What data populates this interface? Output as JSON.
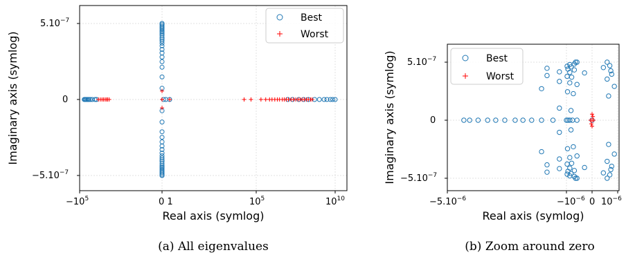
{
  "colors": {
    "best": "#1f77b4",
    "worst": "#ff0000",
    "grid": "#d9d9d9"
  },
  "chart_data": [
    {
      "type": "scatter",
      "caption": "(a) All eigenvalues",
      "xlabel": "Real axis (symlog)",
      "ylabel": "Imaginary axis (symlog)",
      "xscale": "symlog",
      "yscale": "symlog",
      "legend_position": "top-right",
      "grid": true,
      "x_ticks": [
        {
          "label": "−10",
          "exp": "5"
        },
        {
          "label": "0 1",
          "exp": ""
        },
        {
          "label": "10",
          "exp": "5"
        },
        {
          "label": "10",
          "exp": "10"
        }
      ],
      "y_ticks": [
        {
          "label": "5.10",
          "exp": "−7"
        },
        {
          "label": "0",
          "exp": ""
        },
        {
          "label": "−5.10",
          "exp": "−7"
        }
      ],
      "series": [
        {
          "name": "Best",
          "marker": "circle",
          "points": [
            [
              -50000,
              0
            ],
            [
              -45000,
              0
            ],
            [
              -40000,
              0
            ],
            [
              -35000,
              0
            ],
            [
              -30000,
              0
            ],
            [
              -25000,
              0
            ],
            [
              -20000,
              0
            ],
            [
              -15000,
              0
            ],
            [
              -10000,
              0
            ],
            [
              -8000,
              0
            ],
            [
              1,
              0
            ],
            [
              0.2,
              0
            ],
            [
              0.5,
              0
            ],
            [
              0,
              5.6e-07
            ],
            [
              0,
              5e-07
            ],
            [
              0,
              4.5e-07
            ],
            [
              0,
              4e-07
            ],
            [
              0,
              3.6e-07
            ],
            [
              0,
              3.2e-07
            ],
            [
              0,
              2.8e-07
            ],
            [
              0,
              2.5e-07
            ],
            [
              0,
              2.2e-07
            ],
            [
              0,
              1.9e-07
            ],
            [
              0,
              1.6e-07
            ],
            [
              0,
              1.4e-07
            ],
            [
              0,
              1.2e-07
            ],
            [
              0,
              1e-07
            ],
            [
              0,
              8e-08
            ],
            [
              0,
              6e-08
            ],
            [
              0,
              4.5e-08
            ],
            [
              0,
              3.2e-08
            ],
            [
              0,
              2.2e-08
            ],
            [
              0,
              1.4e-08
            ],
            [
              0,
              8e-09
            ],
            [
              0,
              4e-09
            ],
            [
              0,
              -4e-09
            ],
            [
              0,
              -8e-09
            ],
            [
              0,
              -1.4e-08
            ],
            [
              0,
              -2.2e-08
            ],
            [
              0,
              -3.2e-08
            ],
            [
              0,
              -4.5e-08
            ],
            [
              0,
              -6e-08
            ],
            [
              0,
              -8e-08
            ],
            [
              0,
              -1e-07
            ],
            [
              0,
              -1.2e-07
            ],
            [
              0,
              -1.4e-07
            ],
            [
              0,
              -1.6e-07
            ],
            [
              0,
              -1.9e-07
            ],
            [
              0,
              -2.2e-07
            ],
            [
              0,
              -2.5e-07
            ],
            [
              0,
              -2.8e-07
            ],
            [
              0,
              -3.2e-07
            ],
            [
              0,
              -3.6e-07
            ],
            [
              0,
              -4e-07
            ],
            [
              0,
              -4.5e-07
            ],
            [
              0,
              -5e-07
            ],
            [
              0,
              -5.6e-07
            ],
            [
              10000000.0,
              0
            ],
            [
              20000000.0,
              0
            ],
            [
              50000000.0,
              0
            ],
            [
              100000000.0,
              0
            ],
            [
              200000000.0,
              0
            ],
            [
              500000000.0,
              0
            ],
            [
              1000000000.0,
              0
            ],
            [
              2000000000.0,
              0
            ],
            [
              3000000000.0,
              0
            ],
            [
              5000000000.0,
              0
            ],
            [
              7000000000.0,
              0
            ],
            [
              10000000000.0,
              0
            ]
          ]
        },
        {
          "name": "Worst",
          "marker": "plus",
          "points": [
            [
              -6000,
              0
            ],
            [
              -4500,
              0
            ],
            [
              -3500,
              0
            ],
            [
              -2800,
              0
            ],
            [
              -2200,
              0
            ],
            [
              -1800,
              0
            ],
            [
              -1500,
              0
            ],
            [
              -1200,
              0
            ],
            [
              0,
              3e-09
            ],
            [
              0,
              -3e-09
            ],
            [
              0,
              0
            ],
            [
              0.001,
              0
            ],
            [
              -0.001,
              0
            ],
            [
              1,
              0
            ],
            [
              20000,
              0
            ],
            [
              50000,
              0
            ],
            [
              200000.0,
              0
            ],
            [
              400000.0,
              0
            ],
            [
              700000.0,
              0
            ],
            [
              1000000.0,
              0
            ],
            [
              1500000.0,
              0
            ],
            [
              2200000.0,
              0
            ],
            [
              3000000.0,
              0
            ],
            [
              4500000.0,
              0
            ],
            [
              6000000.0,
              0
            ],
            [
              8000000.0,
              0
            ],
            [
              11000000.0,
              0
            ],
            [
              16000000.0,
              0
            ],
            [
              23000000.0,
              0
            ],
            [
              32000000.0,
              0
            ],
            [
              45000000.0,
              0
            ],
            [
              60000000.0,
              0
            ],
            [
              80000000.0,
              0
            ],
            [
              110000000.0,
              0
            ],
            [
              150000000.0,
              0
            ],
            [
              200000000.0,
              0
            ],
            [
              280000000.0,
              0
            ],
            [
              350000000.0,
              0
            ]
          ]
        }
      ]
    },
    {
      "type": "scatter",
      "caption": "(b)  Zoom around zero",
      "xlabel": "Real axis (symlog)",
      "ylabel": "Imaginary axis (symlog)",
      "xscale": "symlog",
      "yscale": "symlog",
      "legend_position": "top-left",
      "grid": true,
      "x_ticks": [
        {
          "label": "−5.10",
          "exp": "−6"
        },
        {
          "label": "−10",
          "exp": "−6"
        },
        {
          "label": "0",
          "exp": ""
        },
        {
          "label": "10",
          "exp": "−6"
        }
      ],
      "y_ticks": [
        {
          "label": "5.10",
          "exp": "−7"
        },
        {
          "label": "0",
          "exp": ""
        },
        {
          "label": "−5.10",
          "exp": "−7"
        }
      ],
      "series": [
        {
          "name": "Best",
          "marker": "circle",
          "points": [
            [
              -4e-06,
              0
            ],
            [
              -3.7e-06,
              0
            ],
            [
              -3.3e-06,
              0
            ],
            [
              -2.9e-06,
              0
            ],
            [
              -2.6e-06,
              0
            ],
            [
              -2.3e-06,
              0
            ],
            [
              -2e-06,
              0
            ],
            [
              -1.8e-06,
              0
            ],
            [
              -1.6e-06,
              0
            ],
            [
              -1.4e-06,
              0
            ],
            [
              -1.2e-06,
              0
            ],
            [
              -1e-06,
              0
            ],
            [
              -8e-07,
              0
            ],
            [
              -6e-07,
              0
            ],
            [
              -4e-07,
              0
            ],
            [
              -2e-07,
              0
            ],
            [
              0,
              0
            ],
            [
              -2e-07,
              6e-07
            ],
            [
              2e-07,
              5.1e-07
            ],
            [
              -2.5e-07,
              5.5e-07
            ],
            [
              -6e-07,
              4e-07
            ],
            [
              -3e-07,
              4.2e-07
            ],
            [
              3e-07,
              3.6e-07
            ],
            [
              -9e-07,
              3.4e-07
            ],
            [
              -5e-07,
              3.2e-07
            ],
            [
              1.5e-07,
              3e-07
            ],
            [
              -1.3e-06,
              2.8e-07
            ],
            [
              -8e-07,
              2.6e-07
            ],
            [
              -3e-07,
              2.4e-07
            ],
            [
              3.5e-07,
              2.2e-07
            ],
            [
              -1.1e-06,
              2e-07
            ],
            [
              -6e-07,
              1.9e-07
            ],
            [
              -1e-07,
              1.8e-07
            ],
            [
              4e-07,
              1.6e-07
            ],
            [
              -1.3e-06,
              1.4e-07
            ],
            [
              -9e-07,
              1.3e-07
            ],
            [
              -4.5e-07,
              1.2e-07
            ],
            [
              2e-07,
              1e-07
            ],
            [
              -1.1e-06,
              8e-08
            ],
            [
              -6e-07,
              7e-08
            ],
            [
              -2e-07,
              6e-08
            ],
            [
              6e-07,
              5e-08
            ],
            [
              -1.4e-06,
              4e-08
            ],
            [
              -8.5e-07,
              3e-08
            ],
            [
              -3.5e-07,
              2.5e-08
            ],
            [
              2.5e-07,
              2e-08
            ],
            [
              -1.1e-06,
              1e-08
            ],
            [
              -5e-07,
              8e-09
            ],
            [
              -2e-07,
              -6e-07
            ],
            [
              2e-07,
              -5.1e-07
            ],
            [
              -2.5e-07,
              -5.5e-07
            ],
            [
              -6e-07,
              -4e-07
            ],
            [
              -3e-07,
              -4.2e-07
            ],
            [
              3e-07,
              -3.6e-07
            ],
            [
              -9e-07,
              -3.4e-07
            ],
            [
              -5e-07,
              -3.2e-07
            ],
            [
              1.5e-07,
              -3e-07
            ],
            [
              -1.3e-06,
              -2.8e-07
            ],
            [
              -8e-07,
              -2.6e-07
            ],
            [
              -3e-07,
              -2.4e-07
            ],
            [
              3.5e-07,
              -2.2e-07
            ],
            [
              -1.1e-06,
              -2e-07
            ],
            [
              -6e-07,
              -1.9e-07
            ],
            [
              -1e-07,
              -1.8e-07
            ],
            [
              4e-07,
              -1.6e-07
            ],
            [
              -1.3e-06,
              -1.4e-07
            ],
            [
              -9e-07,
              -1.3e-07
            ],
            [
              -4.5e-07,
              -1.2e-07
            ],
            [
              2e-07,
              -1e-07
            ],
            [
              -1.1e-06,
              -8e-08
            ],
            [
              -6e-07,
              -7e-08
            ],
            [
              -2e-07,
              -6e-08
            ],
            [
              6e-07,
              -5e-08
            ],
            [
              -1.4e-06,
              -4e-08
            ],
            [
              -8.5e-07,
              -3e-08
            ],
            [
              -3.5e-07,
              -2.5e-08
            ],
            [
              2.5e-07,
              -2e-08
            ],
            [
              -1.1e-06,
              -1e-08
            ],
            [
              -5e-07,
              -8e-09
            ]
          ]
        },
        {
          "name": "Worst",
          "marker": "plus",
          "points": [
            [
              0,
              0
            ],
            [
              -2e-08,
              0
            ],
            [
              2e-08,
              0
            ],
            [
              0,
              5e-09
            ],
            [
              0,
              -5e-09
            ],
            [
              1e-08,
              3e-09
            ],
            [
              -1e-08,
              -3e-09
            ]
          ]
        }
      ]
    }
  ]
}
